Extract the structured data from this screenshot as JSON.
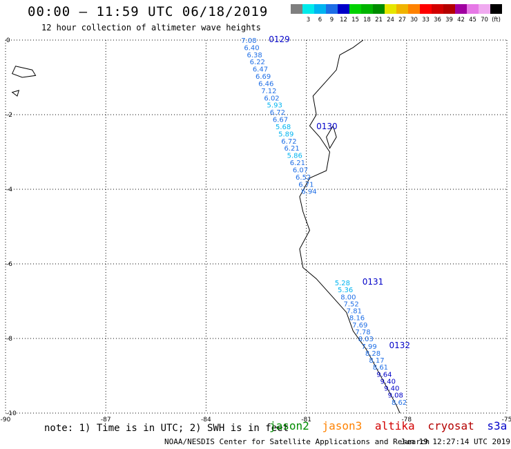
{
  "header": {
    "title": "00:00 – 11:59 UTC 06/18/2019",
    "subtitle": "12 hour collection of altimeter wave heights"
  },
  "legend": {
    "bins": [
      {
        "label": "",
        "color": "#7f7f7f"
      },
      {
        "label": "3",
        "color": "#00eaea"
      },
      {
        "label": "6",
        "color": "#00b4f0"
      },
      {
        "label": "9",
        "color": "#1e6ee6"
      },
      {
        "label": "12",
        "color": "#0000c8"
      },
      {
        "label": "15",
        "color": "#00d200"
      },
      {
        "label": "18",
        "color": "#00b400"
      },
      {
        "label": "21",
        "color": "#008c00"
      },
      {
        "label": "24",
        "color": "#e6e600"
      },
      {
        "label": "27",
        "color": "#f0b400"
      },
      {
        "label": "30",
        "color": "#ff8200"
      },
      {
        "label": "33",
        "color": "#ff0000"
      },
      {
        "label": "36",
        "color": "#d20000"
      },
      {
        "label": "39",
        "color": "#b40000"
      },
      {
        "label": "42",
        "color": "#a000a0"
      },
      {
        "label": "45",
        "color": "#e678e6"
      },
      {
        "label": "70",
        "color": "#f0aaf0"
      },
      {
        "label": "(ft)",
        "color": "#000000"
      }
    ]
  },
  "axes": {
    "x_ticks": [
      "-90",
      "-87",
      "-84",
      "-81",
      "-78",
      "-75"
    ],
    "y_ticks": [
      "0",
      "-2",
      "-4",
      "-6",
      "-8",
      "-10"
    ],
    "x_range": [
      -90,
      -75
    ],
    "y_range": [
      -10,
      0
    ]
  },
  "tracks": [
    {
      "id": "0129",
      "label_color": "#0000c8",
      "lat_start": 0.0,
      "lat_end": -4.05,
      "lon_start": -82.95,
      "lon_end": -81.15,
      "values": [
        "7.08",
        "6.40",
        "6.38",
        "6.22",
        "6.47",
        "6.69",
        "6.46",
        "7.12",
        "6.02",
        "5.93",
        "6.72",
        "6.67",
        "5.68",
        "5.89",
        "6.72",
        "6.21",
        "5.86",
        "6.21",
        "6.07",
        "6.52",
        "6.71",
        "6.94"
      ]
    },
    {
      "id": "0130",
      "label_color": "#0000c8",
      "lat": -2.3,
      "lon": -80.7,
      "values": []
    },
    {
      "id": "0131",
      "label_color": "#0000c8",
      "lat_start": -6.5,
      "lat_end": -8.0,
      "lon_start": -80.15,
      "lon_end": -79.45,
      "values": [
        "5.28",
        "5.36",
        "8.00",
        "7.52",
        "7.81",
        "8.16",
        "7.69",
        "7.78",
        "8.03"
      ]
    },
    {
      "id": "0132",
      "label_color": "#0000c8",
      "lat_start": -8.2,
      "lat_end": -9.7,
      "lon_start": -79.35,
      "lon_end": -78.45,
      "values": [
        "7.99",
        "8.28",
        "8.17",
        "8.61",
        "9.64",
        "9.40",
        "9.40",
        "9.08",
        "8.62"
      ]
    }
  ],
  "footer": {
    "note": "note: 1) Time is in UTC; 2) SWH is in feet",
    "satellites": [
      {
        "name": "jason2",
        "color": "#0000c8"
      },
      {
        "name": "jason3",
        "color": "#008c00"
      },
      {
        "name": "altika",
        "color": "#ff8200"
      },
      {
        "name": "cryosat",
        "color": "#d20000"
      },
      {
        "name": "s3a",
        "color": "#b40000"
      }
    ],
    "credit": "NOAA/NESDIS Center for Satellite Applications and Research",
    "timestamp": "Jun 19 12:27:14 UTC 2019"
  }
}
